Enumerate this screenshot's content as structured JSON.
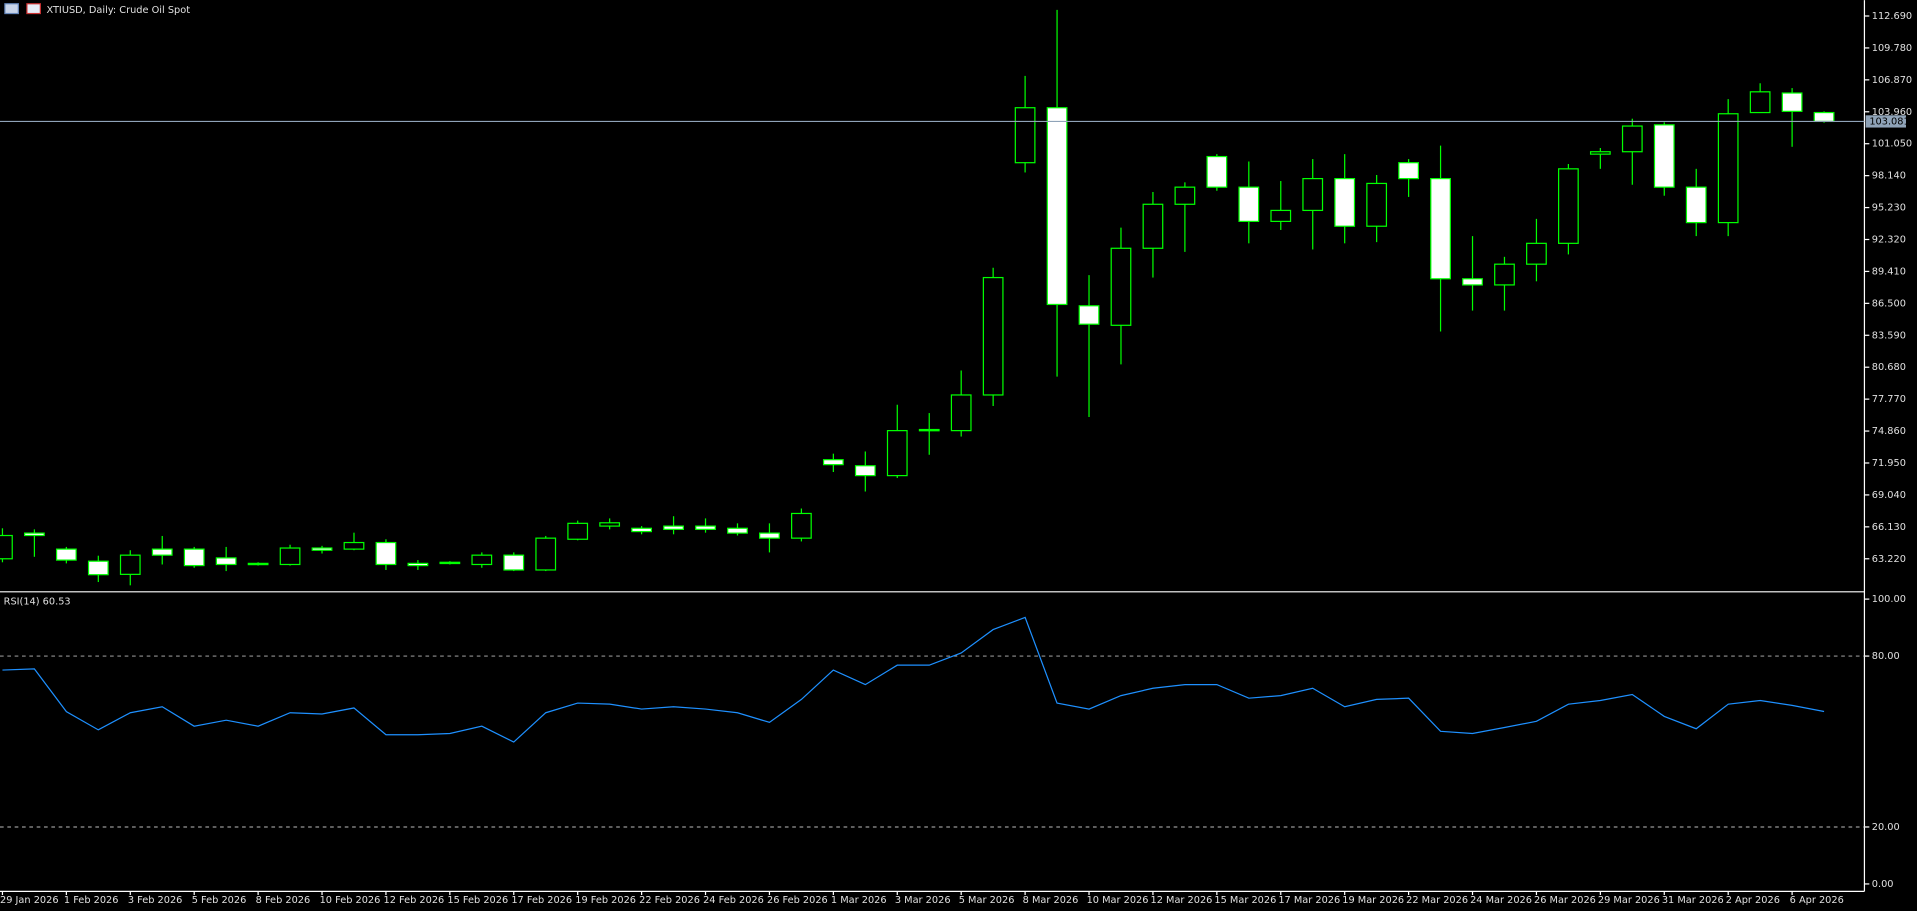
{
  "chart_data": [
    {
      "type": "candlestick",
      "title": "XTIUSD, Daily:  Crude Oil Spot",
      "categories": [
        "29 Jan 2026",
        null,
        "1 Feb 2026",
        null,
        "3 Feb 2026",
        null,
        "5 Feb 2026",
        null,
        "8 Feb 2026",
        null,
        "10 Feb 2026",
        null,
        "12 Feb 2026",
        null,
        "15 Feb 2026",
        null,
        "17 Feb 2026",
        null,
        "19 Feb 2026",
        null,
        "22 Feb 2026",
        null,
        "24 Feb 2026",
        null,
        "26 Feb 2026",
        null,
        "1 Mar 2026",
        null,
        "3 Mar 2026",
        null,
        "5 Mar 2026",
        null,
        "8 Mar 2026",
        null,
        "10 Mar 2026",
        null,
        "12 Mar 2026",
        null,
        "15 Mar 2026",
        null,
        "17 Mar 2026",
        null,
        "19 Mar 2026",
        null,
        "22 Mar 2026",
        null,
        "24 Mar 2026",
        null,
        "26 Mar 2026",
        null,
        "29 Mar 2026",
        null,
        "31 Mar 2026",
        null,
        "2 Apr 2026",
        null,
        "6 Apr 2026",
        null
      ],
      "open": [
        63.22,
        65.56,
        64.1,
        63.0,
        61.8,
        64.1,
        64.1,
        63.3,
        62.8,
        62.7,
        64.2,
        64.1,
        64.7,
        62.8,
        62.9,
        62.7,
        63.55,
        62.2,
        65.0,
        66.2,
        66.0,
        66.2,
        66.2,
        66.0,
        65.56,
        65.1,
        72.25,
        71.7,
        70.8,
        75.0,
        74.9,
        78.15,
        99.32,
        104.33,
        86.28,
        84.5,
        91.52,
        95.53,
        99.88,
        97.09,
        93.97,
        94.97,
        97.87,
        93.53,
        99.32,
        97.87,
        88.74,
        88.18,
        90.07,
        91.97,
        100.1,
        100.32,
        102.77,
        97.09,
        93.86,
        103.89,
        105.67,
        103.89
      ],
      "high": [
        66.0,
        65.9,
        64.3,
        63.5,
        64.0,
        65.3,
        64.3,
        64.3,
        62.9,
        64.5,
        64.4,
        65.6,
        65.0,
        63.1,
        63.0,
        63.8,
        63.8,
        65.3,
        66.7,
        66.9,
        66.2,
        67.1,
        66.9,
        66.45,
        66.45,
        67.8,
        72.8,
        73.0,
        77.26,
        76.5,
        80.38,
        89.74,
        107.23,
        113.25,
        89.07,
        93.4,
        96.65,
        97.53,
        100.1,
        99.43,
        97.65,
        99.65,
        100.1,
        98.2,
        99.65,
        100.88,
        92.63,
        90.74,
        94.2,
        99.2,
        100.66,
        103.33,
        103.0,
        98.76,
        105.11,
        106.56,
        106.12,
        104.0
      ],
      "low": [
        62.9,
        63.4,
        62.8,
        61.1,
        60.8,
        62.7,
        62.4,
        62.1,
        62.6,
        62.6,
        63.7,
        64.0,
        62.2,
        62.2,
        62.7,
        62.4,
        62.1,
        62.1,
        64.9,
        65.9,
        65.45,
        65.45,
        65.6,
        65.34,
        63.8,
        64.8,
        71.13,
        69.35,
        70.58,
        72.7,
        74.36,
        77.15,
        98.43,
        79.82,
        76.14,
        80.94,
        88.85,
        91.19,
        96.76,
        91.97,
        93.19,
        91.41,
        91.97,
        92.08,
        96.2,
        83.94,
        85.84,
        85.84,
        88.51,
        90.96,
        98.76,
        97.31,
        96.31,
        92.63,
        92.63,
        103.89,
        100.77,
        102.96
      ],
      "close": [
        65.34,
        65.34,
        63.1,
        61.77,
        63.55,
        63.55,
        62.6,
        62.7,
        62.7,
        64.2,
        64.0,
        64.7,
        62.7,
        62.6,
        62.8,
        63.55,
        62.2,
        65.1,
        66.45,
        66.5,
        65.7,
        65.9,
        65.9,
        65.56,
        65.1,
        67.35,
        71.8,
        70.8,
        74.9,
        74.9,
        78.15,
        88.85,
        104.33,
        86.4,
        84.6,
        91.52,
        95.53,
        97.09,
        97.09,
        93.97,
        94.97,
        97.87,
        93.53,
        97.43,
        97.87,
        88.74,
        88.18,
        90.07,
        91.97,
        98.76,
        100.32,
        102.66,
        97.09,
        93.86,
        103.78,
        105.78,
        104.0,
        103.08
      ],
      "colors": {
        "up": "#000000",
        "down": "#ffffff",
        "outline": "#00ff00"
      },
      "ylim": [
        60.32,
        114.14
      ],
      "yticks": [
        {
          "value": 112.69,
          "label": "112.690"
        },
        {
          "value": 109.78,
          "label": "109.780"
        },
        {
          "value": 106.87,
          "label": "106.870"
        },
        {
          "value": 103.96,
          "label": "103.960"
        },
        {
          "value": 101.05,
          "label": "101.050"
        },
        {
          "value": 98.14,
          "label": "98.140"
        },
        {
          "value": 95.23,
          "label": "95.230"
        },
        {
          "value": 92.32,
          "label": "92.320"
        },
        {
          "value": 89.41,
          "label": "89.410"
        },
        {
          "value": 86.5,
          "label": "86.500"
        },
        {
          "value": 83.59,
          "label": "83.590"
        },
        {
          "value": 80.68,
          "label": "80.680"
        },
        {
          "value": 77.77,
          "label": "77.770"
        },
        {
          "value": 74.86,
          "label": "74.860"
        },
        {
          "value": 71.95,
          "label": "71.950"
        },
        {
          "value": 69.04,
          "label": "69.040"
        },
        {
          "value": 66.13,
          "label": "66.130"
        },
        {
          "value": 63.22,
          "label": "63.220"
        }
      ],
      "price_line": {
        "value": 103.081,
        "label": "103.081",
        "color": "#8fa3b8"
      }
    },
    {
      "type": "line",
      "title": "RSI(14) 60.53",
      "color": "#1e90ff",
      "values": [
        75.1,
        75.5,
        60.5,
        54.1,
        60.1,
        62.2,
        55.4,
        57.5,
        55.4,
        60.1,
        59.7,
        61.8,
        52.4,
        52.4,
        52.8,
        55.4,
        49.8,
        60.1,
        63.5,
        63.1,
        61.4,
        62.2,
        61.4,
        60.1,
        56.7,
        64.8,
        75.1,
        70.0,
        76.8,
        76.8,
        81.1,
        89.3,
        93.6,
        63.5,
        61.4,
        66.1,
        68.7,
        70.0,
        70.0,
        65.2,
        66.1,
        68.7,
        62.2,
        64.8,
        65.2,
        53.6,
        52.8,
        54.9,
        57.1,
        63.1,
        64.4,
        66.5,
        58.8,
        54.5,
        63.1,
        64.4,
        62.7,
        60.53
      ],
      "ylim": [
        -2.6,
        101.7
      ],
      "yticks": [
        {
          "value": 100,
          "label": "100.00"
        },
        {
          "value": 80,
          "label": "80.00"
        },
        {
          "value": 20,
          "label": "20.00"
        },
        {
          "value": 0,
          "label": "0.00"
        }
      ],
      "levels": [
        80,
        20
      ]
    }
  ]
}
